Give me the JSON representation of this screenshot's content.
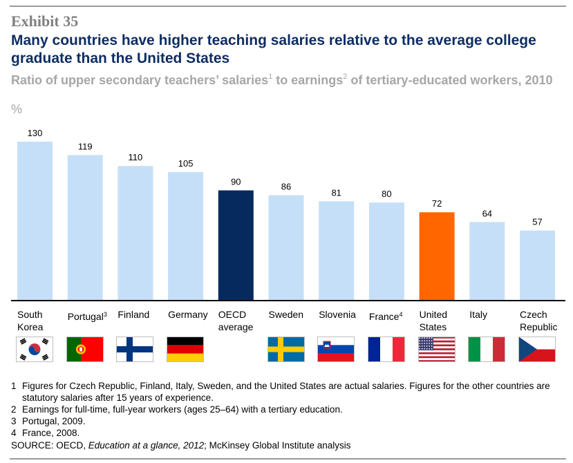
{
  "exhibit": "Exhibit 35",
  "title": "Many countries have higher teaching salaries relative to the average college graduate than the United States",
  "subtitle": {
    "part1": "Ratio of upper secondary teachers’ salaries",
    "sup1": "1",
    "part2": " to earnings",
    "sup2": "2",
    "part3": " of tertiary-educated workers, 2010"
  },
  "unit": "%",
  "colors": {
    "bar": "#c5dff8",
    "oecd": "#072a5e",
    "us": "#ff6600",
    "baseline": "#000000"
  },
  "chart_data": {
    "type": "bar",
    "categories": [
      "South Korea",
      "Portugal",
      "Finland",
      "Germany",
      "OECD average",
      "Sweden",
      "Slovenia",
      "France",
      "United States",
      "Italy",
      "Czech Republic"
    ],
    "values": [
      130,
      119,
      110,
      105,
      90,
      86,
      81,
      80,
      72,
      64,
      57
    ],
    "ylim": [
      0,
      130
    ]
  },
  "labels": [
    {
      "line1": "South",
      "line2": "Korea",
      "sup": "",
      "flag": "south-korea"
    },
    {
      "line1": "Portugal",
      "line2": "",
      "sup": "3",
      "flag": "portugal"
    },
    {
      "line1": "Finland",
      "line2": "",
      "sup": "",
      "flag": "finland"
    },
    {
      "line1": "Germany",
      "line2": "",
      "sup": "",
      "flag": "germany"
    },
    {
      "line1": "OECD",
      "line2": "average",
      "sup": "",
      "flag": ""
    },
    {
      "line1": "Sweden",
      "line2": "",
      "sup": "",
      "flag": "sweden"
    },
    {
      "line1": "Slovenia",
      "line2": "",
      "sup": "",
      "flag": "slovenia"
    },
    {
      "line1": "France",
      "line2": "",
      "sup": "4",
      "flag": "france"
    },
    {
      "line1": "United",
      "line2": "States",
      "sup": "",
      "flag": "united-states"
    },
    {
      "line1": "Italy",
      "line2": "",
      "sup": "",
      "flag": "italy"
    },
    {
      "line1": "Czech",
      "line2": "Republic",
      "sup": "",
      "flag": "czech-republic"
    }
  ],
  "footnotes": [
    {
      "num": "1",
      "text": "Figures for Czech Republic, Finland, Italy, Sweden, and the United States are actual salaries. Figures for the other countries are statutory salaries after 15 years of experience."
    },
    {
      "num": "2",
      "text": "Earnings for full-time, full-year workers (ages 25–64) with a tertiary education."
    },
    {
      "num": "3",
      "text": "Portugal, 2009."
    },
    {
      "num": "4",
      "text": "France, 2008."
    }
  ],
  "source": {
    "prefix": "SOURCE: OECD, ",
    "italic": "Education at a glance, 2012",
    "suffix": "; McKinsey Global Institute analysis"
  }
}
